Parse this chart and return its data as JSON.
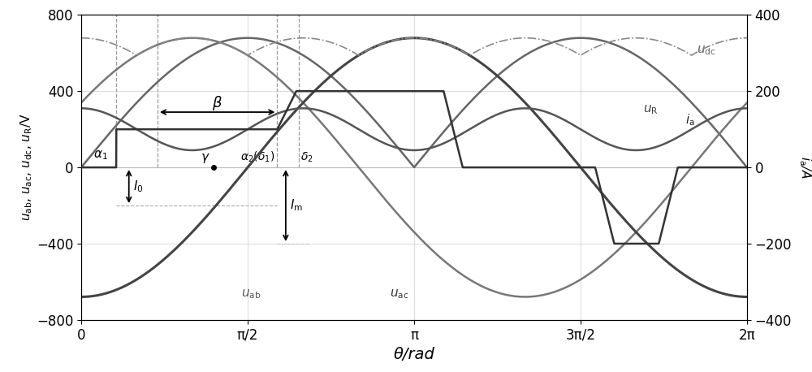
{
  "xlim": [
    0,
    6.2832
  ],
  "ylim_left": [
    -800,
    800
  ],
  "ylim_right": [
    -400,
    400
  ],
  "xlabel": "θ/rad",
  "xticks": [
    0,
    1.5708,
    3.1416,
    4.7124,
    6.2832
  ],
  "xtick_labels": [
    "0",
    "π/2",
    "π",
    "3π/2",
    "2π"
  ],
  "yticks_left": [
    -800,
    -400,
    0,
    400,
    800
  ],
  "yticks_right": [
    -400,
    -200,
    0,
    200,
    400
  ],
  "Vm": 679,
  "Vdc_mean": 540,
  "I0": 100,
  "Im": 200,
  "alpha1": 0.33,
  "alpha2": 1.85,
  "delta2": 2.05,
  "gamma_x": 1.25,
  "beta_x_start": 0.72,
  "beta_x_end": 1.85,
  "beta_y": 290,
  "color_uab": "#777777",
  "color_uac": "#444444",
  "color_udc_dash": "#888888",
  "color_uR": "#555555",
  "color_ia": "#333333",
  "color_dotted": "#666666",
  "color_vline": "#999999",
  "color_hline": "#aaaaaa",
  "figsize": [
    10.0,
    4.58
  ]
}
